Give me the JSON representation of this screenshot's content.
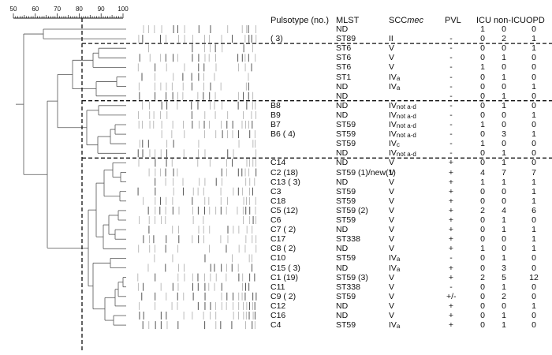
{
  "scale": {
    "ticks": [
      "50",
      "60",
      "70",
      "80",
      "90",
      "100"
    ]
  },
  "headers": {
    "pulsotype": "Pulsotype (no.)",
    "mlst": "MLST",
    "scc_prefix": "SCC",
    "scc_suffix": "mec",
    "pvl": "PVL",
    "icu": "ICU",
    "nonicu": "non-ICU",
    "opd": "OPD"
  },
  "rows": [
    {
      "pulso": "",
      "mlst": "ND",
      "scc": "",
      "sccSub": "",
      "pvl": "",
      "icu": "1",
      "non": "0",
      "opd": "0"
    },
    {
      "pulso": "( 3)",
      "mlst": "ST89",
      "scc": "II",
      "sccSub": "",
      "pvl": "-",
      "icu": "0",
      "non": "2",
      "opd": "1"
    },
    {
      "pulso": "",
      "mlst": "ST6",
      "scc": "V",
      "sccSub": "",
      "pvl": "-",
      "icu": "0",
      "non": "0",
      "opd": "1"
    },
    {
      "pulso": "",
      "mlst": "ST6",
      "scc": "V",
      "sccSub": "",
      "pvl": "-",
      "icu": "0",
      "non": "1",
      "opd": "0"
    },
    {
      "pulso": "",
      "mlst": "ST6",
      "scc": "V",
      "sccSub": "",
      "pvl": "-",
      "icu": "1",
      "non": "0",
      "opd": "0"
    },
    {
      "pulso": "",
      "mlst": "ST1",
      "scc": "IV",
      "sccSub": "a",
      "pvl": "-",
      "icu": "0",
      "non": "1",
      "opd": "0"
    },
    {
      "pulso": "",
      "mlst": "ND",
      "scc": "IV",
      "sccSub": "a",
      "pvl": "-",
      "icu": "0",
      "non": "0",
      "opd": "1"
    },
    {
      "pulso": "",
      "mlst": "ND",
      "scc": "",
      "sccSub": "",
      "pvl": "-",
      "icu": "0",
      "non": "1",
      "opd": "0"
    },
    {
      "pulso": "B8",
      "mlst": "ND",
      "scc": "IV",
      "sccSub": "not a-d",
      "pvl": "-",
      "icu": "0",
      "non": "1",
      "opd": "0"
    },
    {
      "pulso": "B9",
      "mlst": "ND",
      "scc": "IV",
      "sccSub": "not a-d",
      "pvl": "-",
      "icu": "0",
      "non": "0",
      "opd": "1"
    },
    {
      "pulso": "B7",
      "mlst": "ST59",
      "scc": "IV",
      "sccSub": "not a-d",
      "pvl": "-",
      "icu": "1",
      "non": "0",
      "opd": "0"
    },
    {
      "pulso": "B6  ( 4)",
      "mlst": "ST59",
      "scc": "IV",
      "sccSub": "not a-d",
      "pvl": "-",
      "icu": "0",
      "non": "3",
      "opd": "1"
    },
    {
      "pulso": "",
      "mlst": "ST59",
      "scc": "IV",
      "sccSub": "c",
      "pvl": "-",
      "icu": "1",
      "non": "0",
      "opd": "0"
    },
    {
      "pulso": "",
      "mlst": "ND",
      "scc": "IV",
      "sccSub": "not a-d",
      "pvl": "-",
      "icu": "0",
      "non": "1",
      "opd": "0"
    },
    {
      "pulso": "C14",
      "mlst": "ND",
      "scc": "V",
      "sccSub": "",
      "pvl": "+",
      "icu": "0",
      "non": "1",
      "opd": "0"
    },
    {
      "pulso": "C2  (18)",
      "mlst": "ST59 (1)/new(1)",
      "scc": "V",
      "sccSub": "",
      "pvl": "+",
      "icu": "4",
      "non": "7",
      "opd": "7"
    },
    {
      "pulso": "C13 ( 3)",
      "mlst": "ND",
      "scc": "V",
      "sccSub": "",
      "pvl": "+",
      "icu": "1",
      "non": "1",
      "opd": "1"
    },
    {
      "pulso": "C3",
      "mlst": "ST59",
      "scc": "V",
      "sccSub": "",
      "pvl": "+",
      "icu": "0",
      "non": "0",
      "opd": "1"
    },
    {
      "pulso": "C18",
      "mlst": "ST59",
      "scc": "V",
      "sccSub": "",
      "pvl": "+",
      "icu": "0",
      "non": "0",
      "opd": "1"
    },
    {
      "pulso": "C5  (12)",
      "mlst": "ST59 (2)",
      "scc": "V",
      "sccSub": "",
      "pvl": "+",
      "icu": "2",
      "non": "4",
      "opd": "6"
    },
    {
      "pulso": "C6",
      "mlst": "ST59",
      "scc": "V",
      "sccSub": "",
      "pvl": "+",
      "icu": "0",
      "non": "1",
      "opd": "0"
    },
    {
      "pulso": "C7  ( 2)",
      "mlst": "ND",
      "scc": "V",
      "sccSub": "",
      "pvl": "+",
      "icu": "0",
      "non": "1",
      "opd": "1"
    },
    {
      "pulso": "C17",
      "mlst": "ST338",
      "scc": "V",
      "sccSub": "",
      "pvl": "+",
      "icu": "0",
      "non": "0",
      "opd": "1"
    },
    {
      "pulso": "C8  ( 2)",
      "mlst": "ND",
      "scc": "V",
      "sccSub": "",
      "pvl": "+",
      "icu": "1",
      "non": "0",
      "opd": "1"
    },
    {
      "pulso": "C10",
      "mlst": "ST59",
      "scc": "IV",
      "sccSub": "a",
      "pvl": "-",
      "icu": "0",
      "non": "1",
      "opd": "0"
    },
    {
      "pulso": "C15 ( 3)",
      "mlst": "ND",
      "scc": "IV",
      "sccSub": "a",
      "pvl": "+",
      "icu": "0",
      "non": "3",
      "opd": "0"
    },
    {
      "pulso": "C1  (19)",
      "mlst": "ST59 (3)",
      "scc": "V",
      "sccSub": "",
      "pvl": "+",
      "icu": "2",
      "non": "5",
      "opd": "12"
    },
    {
      "pulso": "C11",
      "mlst": "ST338",
      "scc": "V",
      "sccSub": "",
      "pvl": "-",
      "icu": "0",
      "non": "1",
      "opd": "0"
    },
    {
      "pulso": "C9  ( 2)",
      "mlst": "ST59",
      "scc": "V",
      "sccSub": "",
      "pvl": "+/-",
      "icu": "0",
      "non": "2",
      "opd": "0"
    },
    {
      "pulso": "C12",
      "mlst": "ND",
      "scc": "V",
      "sccSub": "",
      "pvl": "+",
      "icu": "0",
      "non": "0",
      "opd": "1"
    },
    {
      "pulso": "C16",
      "mlst": "ND",
      "scc": "V",
      "sccSub": "",
      "pvl": "+",
      "icu": "0",
      "non": "1",
      "opd": "0"
    },
    {
      "pulso": "C4",
      "mlst": "ST59",
      "scc": "IV",
      "sccSub": "a",
      "pvl": "+",
      "icu": "0",
      "non": "1",
      "opd": "0"
    }
  ]
}
